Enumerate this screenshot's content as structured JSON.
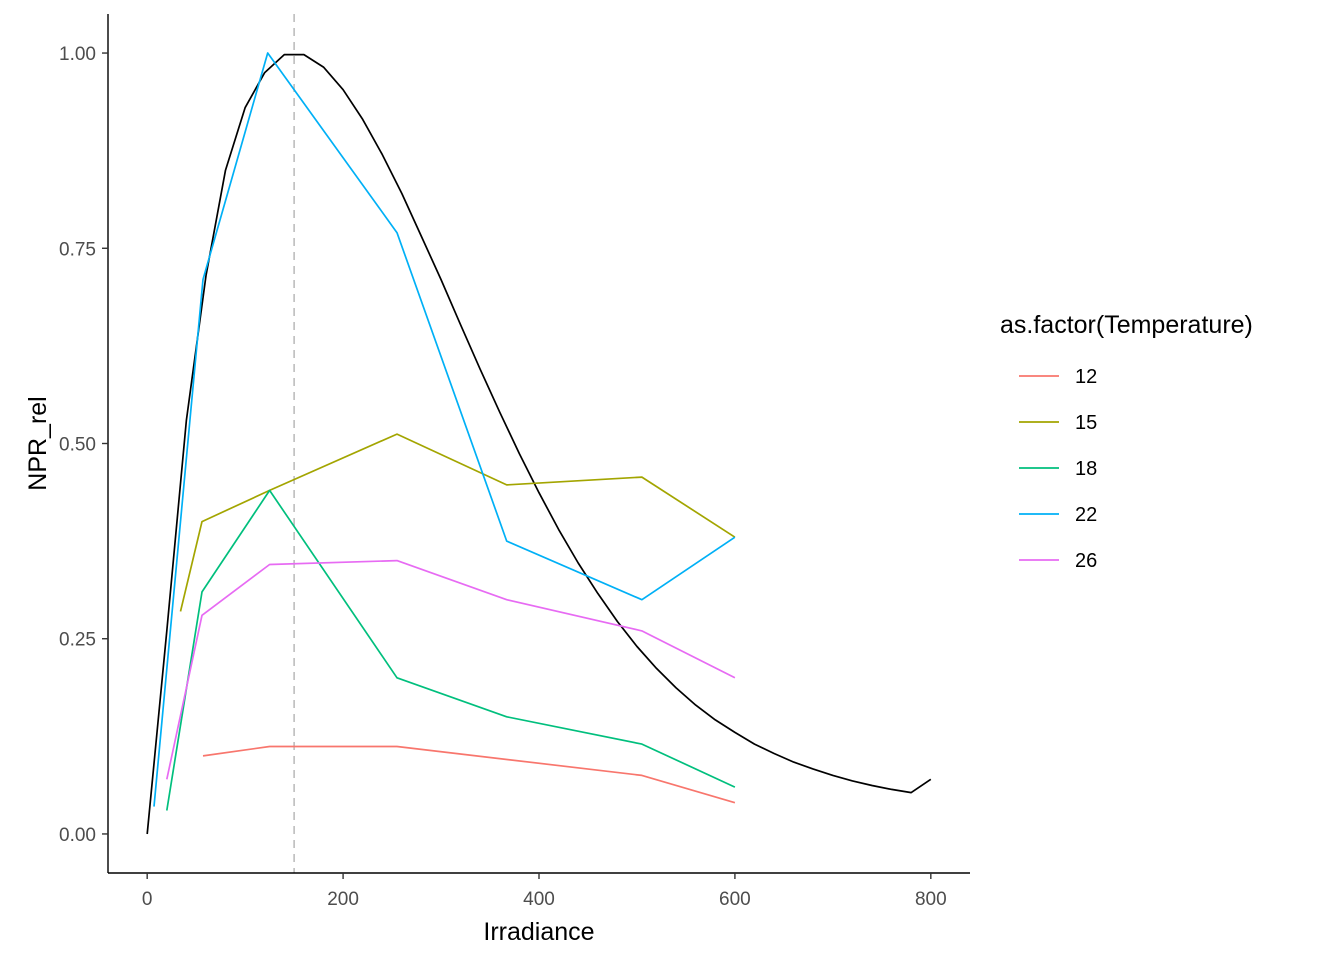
{
  "chart_data": {
    "type": "line",
    "title": "",
    "xlabel": "Irradiance",
    "ylabel": "NPR_rel",
    "xlim": [
      -40,
      840
    ],
    "ylim": [
      -0.05,
      1.05
    ],
    "x_ticks": [
      0,
      200,
      400,
      600,
      800
    ],
    "x_tick_labels": [
      "0",
      "200",
      "400",
      "600",
      "800"
    ],
    "y_ticks": [
      0,
      0.25,
      0.5,
      0.75,
      1.0
    ],
    "y_tick_labels": [
      "0.00",
      "0.25",
      "0.50",
      "0.75",
      "1.00"
    ],
    "grid": false,
    "legend_position": "right",
    "legend_title": "as.factor(Temperature)",
    "vline": {
      "x": 150,
      "style": "dashed",
      "color": "#bdbdbd"
    },
    "series": [
      {
        "name": "12",
        "color": "#F8766D",
        "x": [
          57,
          125,
          255,
          505,
          600
        ],
        "y": [
          0.1,
          0.112,
          0.112,
          0.075,
          0.04
        ]
      },
      {
        "name": "15",
        "color": "#A3A500",
        "x": [
          34,
          56,
          125,
          255,
          367,
          505,
          600
        ],
        "y": [
          0.285,
          0.4,
          0.44,
          0.512,
          0.447,
          0.457,
          0.38
        ]
      },
      {
        "name": "18",
        "color": "#00BF7D",
        "x": [
          20,
          56,
          125,
          255,
          367,
          505,
          600
        ],
        "y": [
          0.03,
          0.31,
          0.44,
          0.2,
          0.15,
          0.115,
          0.06
        ]
      },
      {
        "name": "22",
        "color": "#00B0F6",
        "x": [
          7,
          57,
          123,
          255,
          367,
          505,
          600
        ],
        "y": [
          0.035,
          0.71,
          1.0,
          0.77,
          0.375,
          0.3,
          0.38
        ]
      },
      {
        "name": "26",
        "color": "#E76BF3",
        "x": [
          20,
          56,
          125,
          255,
          367,
          505,
          600
        ],
        "y": [
          0.07,
          0.28,
          0.345,
          0.35,
          0.3,
          0.26,
          0.2
        ]
      }
    ],
    "fit_curve": {
      "color": "#000000",
      "x": [
        0,
        20,
        40,
        60,
        80,
        100,
        120,
        140,
        160,
        180,
        200,
        220,
        240,
        260,
        280,
        300,
        320,
        340,
        360,
        380,
        400,
        420,
        440,
        460,
        480,
        500,
        520,
        540,
        560,
        580,
        600,
        620,
        640,
        660,
        680,
        700,
        720,
        740,
        760,
        780,
        800
      ],
      "y": [
        0.0,
        0.26,
        0.53,
        0.715,
        0.85,
        0.93,
        0.975,
        0.998,
        0.998,
        0.982,
        0.953,
        0.915,
        0.87,
        0.82,
        0.765,
        0.71,
        0.652,
        0.595,
        0.54,
        0.487,
        0.437,
        0.39,
        0.347,
        0.308,
        0.272,
        0.24,
        0.212,
        0.187,
        0.165,
        0.146,
        0.13,
        0.115,
        0.103,
        0.092,
        0.083,
        0.075,
        0.068,
        0.062,
        0.057,
        0.053,
        0.07
      ]
    }
  }
}
